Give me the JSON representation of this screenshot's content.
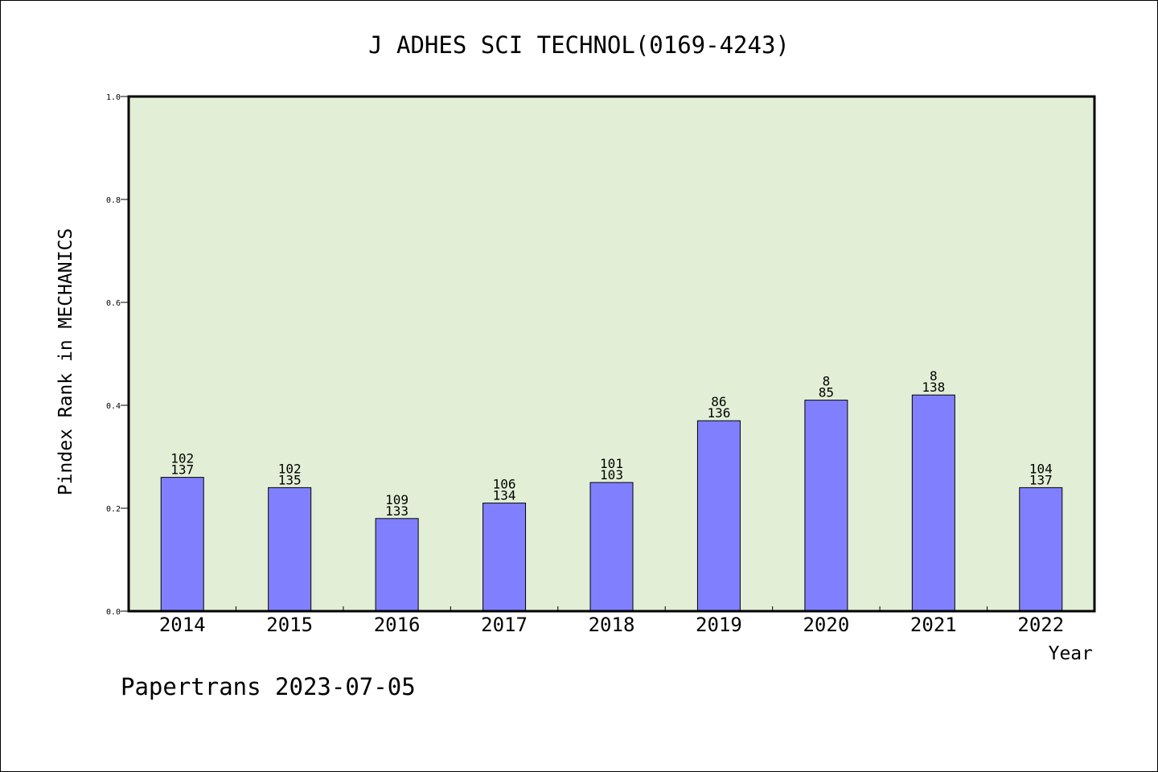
{
  "chart_data": {
    "type": "bar",
    "title": "J ADHES SCI TECHNOL(0169-4243)",
    "xlabel": "Year",
    "ylabel": "Pindex Rank in MECHANICS",
    "ylim": [
      0,
      1.0
    ],
    "yticks": [
      "0.0",
      "0.2",
      "0.4",
      "0.6",
      "0.8",
      "1.0"
    ],
    "categories": [
      "2014",
      "2015",
      "2016",
      "2017",
      "2018",
      "2019",
      "2020",
      "2021",
      "2022"
    ],
    "values": [
      0.26,
      0.24,
      0.18,
      0.21,
      0.25,
      0.37,
      0.41,
      0.42,
      0.24
    ],
    "labels_top": [
      "102",
      "102",
      "109",
      "106",
      "101",
      "86",
      "8",
      "8",
      "104"
    ],
    "labels_bottom": [
      "137",
      "135",
      "133",
      "134",
      "103",
      "136",
      "85",
      "138",
      "137"
    ],
    "grid": false,
    "colors": {
      "plot_bg": "#e2efd6",
      "bar": "#8080ff",
      "bar_edge": "#000000"
    }
  },
  "footer": "Papertrans 2023-07-05"
}
